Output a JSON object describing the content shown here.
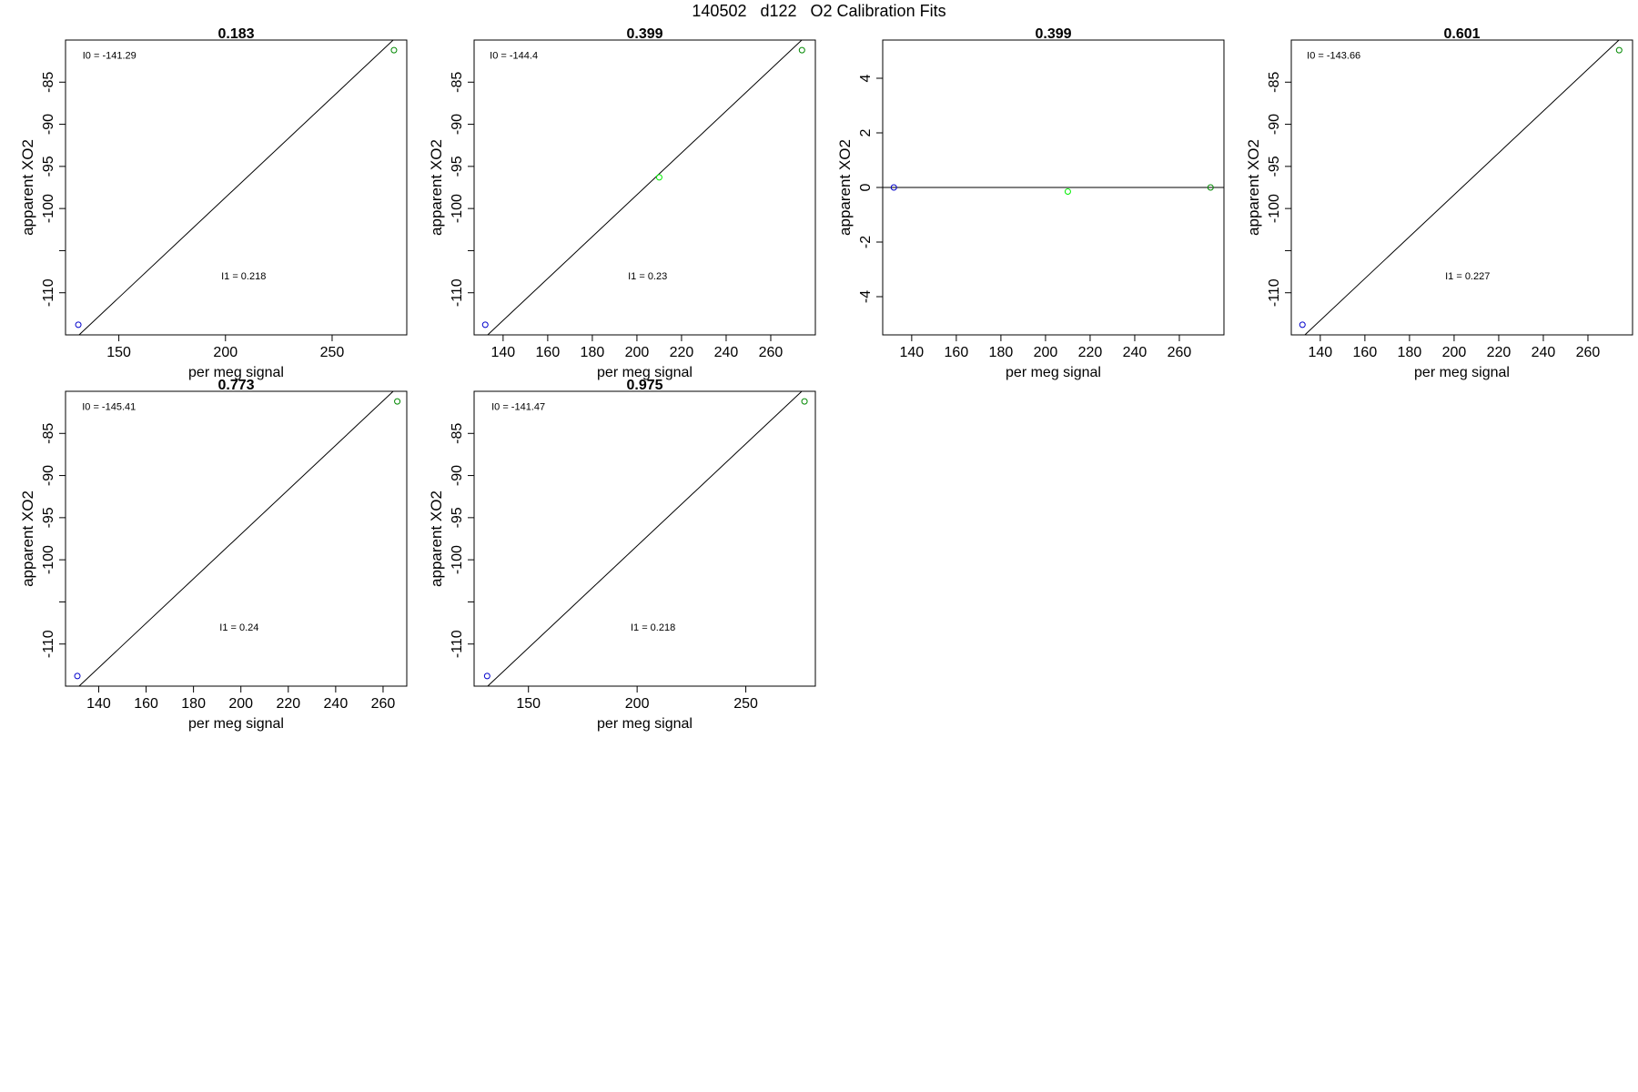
{
  "page_title": "140502   d122   O2 Calibration Fits",
  "colors": {
    "frame": "#000000",
    "fit_line": "#000000",
    "point_low": "#0000cc",
    "point_mid": "#00ee00",
    "point_high": "#008800"
  },
  "chart_data": [
    {
      "type": "scatter",
      "title": "0.183",
      "xlabel": "per meg signal",
      "ylabel": "apparent XO2",
      "xlim": [
        125,
        285
      ],
      "ylim": [
        -115,
        -80
      ],
      "xticks": [
        150,
        200,
        250
      ],
      "yticks": [
        -110,
        -105,
        -100,
        -95,
        -90,
        -85
      ],
      "ytick_labels": [
        "-110",
        "",
        "-100",
        "-95",
        "-90",
        "-85"
      ],
      "points": [
        {
          "x": 131,
          "y": -113.8,
          "color": "#0000cc"
        },
        {
          "x": 279,
          "y": -81.2,
          "color": "#008800"
        }
      ],
      "fit_line": {
        "type": "diagonal"
      },
      "annotations": [
        {
          "label": "I0 =  -141.29",
          "x": 133,
          "y": -82.2
        },
        {
          "label": "I1 =  0.218",
          "x": 198,
          "y": -108.4
        }
      ]
    },
    {
      "type": "scatter",
      "title": "0.399",
      "xlabel": "per meg signal",
      "ylabel": "apparent XO2",
      "xlim": [
        127,
        280
      ],
      "ylim": [
        -115,
        -80
      ],
      "xticks": [
        140,
        160,
        180,
        200,
        220,
        240,
        260
      ],
      "yticks": [
        -110,
        -105,
        -100,
        -95,
        -90,
        -85
      ],
      "ytick_labels": [
        "-110",
        "",
        "-100",
        "-95",
        "-90",
        "-85"
      ],
      "points": [
        {
          "x": 132,
          "y": -113.8,
          "color": "#0000cc"
        },
        {
          "x": 210,
          "y": -96.3,
          "color": "#00ee00"
        },
        {
          "x": 274,
          "y": -81.2,
          "color": "#008800"
        }
      ],
      "fit_line": {
        "type": "diagonal"
      },
      "annotations": [
        {
          "label": "I0 =  -144.4",
          "x": 134,
          "y": -82.2
        },
        {
          "label": "I1 =  0.23",
          "x": 196,
          "y": -108.4
        }
      ]
    },
    {
      "type": "scatter",
      "title": "0.399",
      "xlabel": "per meg signal",
      "ylabel": "apparent XO2",
      "xlim": [
        127,
        280
      ],
      "ylim": [
        -5.4,
        5.4
      ],
      "xticks": [
        140,
        160,
        180,
        200,
        220,
        240,
        260
      ],
      "yticks": [
        -4,
        -2,
        0,
        2,
        4
      ],
      "ytick_labels": [
        "-4",
        "-2",
        "0",
        "2",
        "4"
      ],
      "points": [
        {
          "x": 132,
          "y": 0.0,
          "color": "#0000cc"
        },
        {
          "x": 210,
          "y": -0.15,
          "color": "#00ee00"
        },
        {
          "x": 274,
          "y": 0.0,
          "color": "#008800"
        }
      ],
      "fit_line": {
        "type": "horizontal",
        "y": 0
      },
      "annotations": []
    },
    {
      "type": "scatter",
      "title": "0.601",
      "xlabel": "per meg signal",
      "ylabel": "apparent XO2",
      "xlim": [
        127,
        280
      ],
      "ylim": [
        -115,
        -80
      ],
      "xticks": [
        140,
        160,
        180,
        200,
        220,
        240,
        260
      ],
      "yticks": [
        -110,
        -105,
        -100,
        -95,
        -90,
        -85
      ],
      "ytick_labels": [
        "-110",
        "",
        "-100",
        "-95",
        "-90",
        "-85"
      ],
      "points": [
        {
          "x": 132,
          "y": -113.8,
          "color": "#0000cc"
        },
        {
          "x": 274,
          "y": -81.2,
          "color": "#008800"
        }
      ],
      "fit_line": {
        "type": "diagonal"
      },
      "annotations": [
        {
          "label": "I0 =  -143.66",
          "x": 134,
          "y": -82.2
        },
        {
          "label": "I1 =  0.227",
          "x": 196,
          "y": -108.4
        }
      ]
    },
    {
      "type": "scatter",
      "title": "0.773",
      "xlabel": "per meg signal",
      "ylabel": "apparent XO2",
      "xlim": [
        126,
        270
      ],
      "ylim": [
        -115,
        -80
      ],
      "xticks": [
        140,
        160,
        180,
        200,
        220,
        240,
        260
      ],
      "yticks": [
        -110,
        -105,
        -100,
        -95,
        -90,
        -85
      ],
      "ytick_labels": [
        "-110",
        "",
        "-100",
        "-95",
        "-90",
        "-85"
      ],
      "points": [
        {
          "x": 131,
          "y": -113.8,
          "color": "#0000cc"
        },
        {
          "x": 266,
          "y": -81.2,
          "color": "#008800"
        }
      ],
      "fit_line": {
        "type": "diagonal"
      },
      "annotations": [
        {
          "label": "I0 =  -145.41",
          "x": 133,
          "y": -82.2
        },
        {
          "label": "I1 =  0.24",
          "x": 191,
          "y": -108.4
        }
      ]
    },
    {
      "type": "scatter",
      "title": "0.975",
      "xlabel": "per meg signal",
      "ylabel": "apparent XO2",
      "xlim": [
        125,
        282
      ],
      "ylim": [
        -115,
        -80
      ],
      "xticks": [
        150,
        200,
        250
      ],
      "yticks": [
        -110,
        -105,
        -100,
        -95,
        -90,
        -85
      ],
      "ytick_labels": [
        "-110",
        "",
        "-100",
        "-95",
        "-90",
        "-85"
      ],
      "points": [
        {
          "x": 131,
          "y": -113.8,
          "color": "#0000cc"
        },
        {
          "x": 277,
          "y": -81.2,
          "color": "#008800"
        }
      ],
      "fit_line": {
        "type": "diagonal"
      },
      "annotations": [
        {
          "label": "I0 =  -141.47",
          "x": 133,
          "y": -82.2
        },
        {
          "label": "I1 =  0.218",
          "x": 197,
          "y": -108.4
        }
      ]
    }
  ]
}
